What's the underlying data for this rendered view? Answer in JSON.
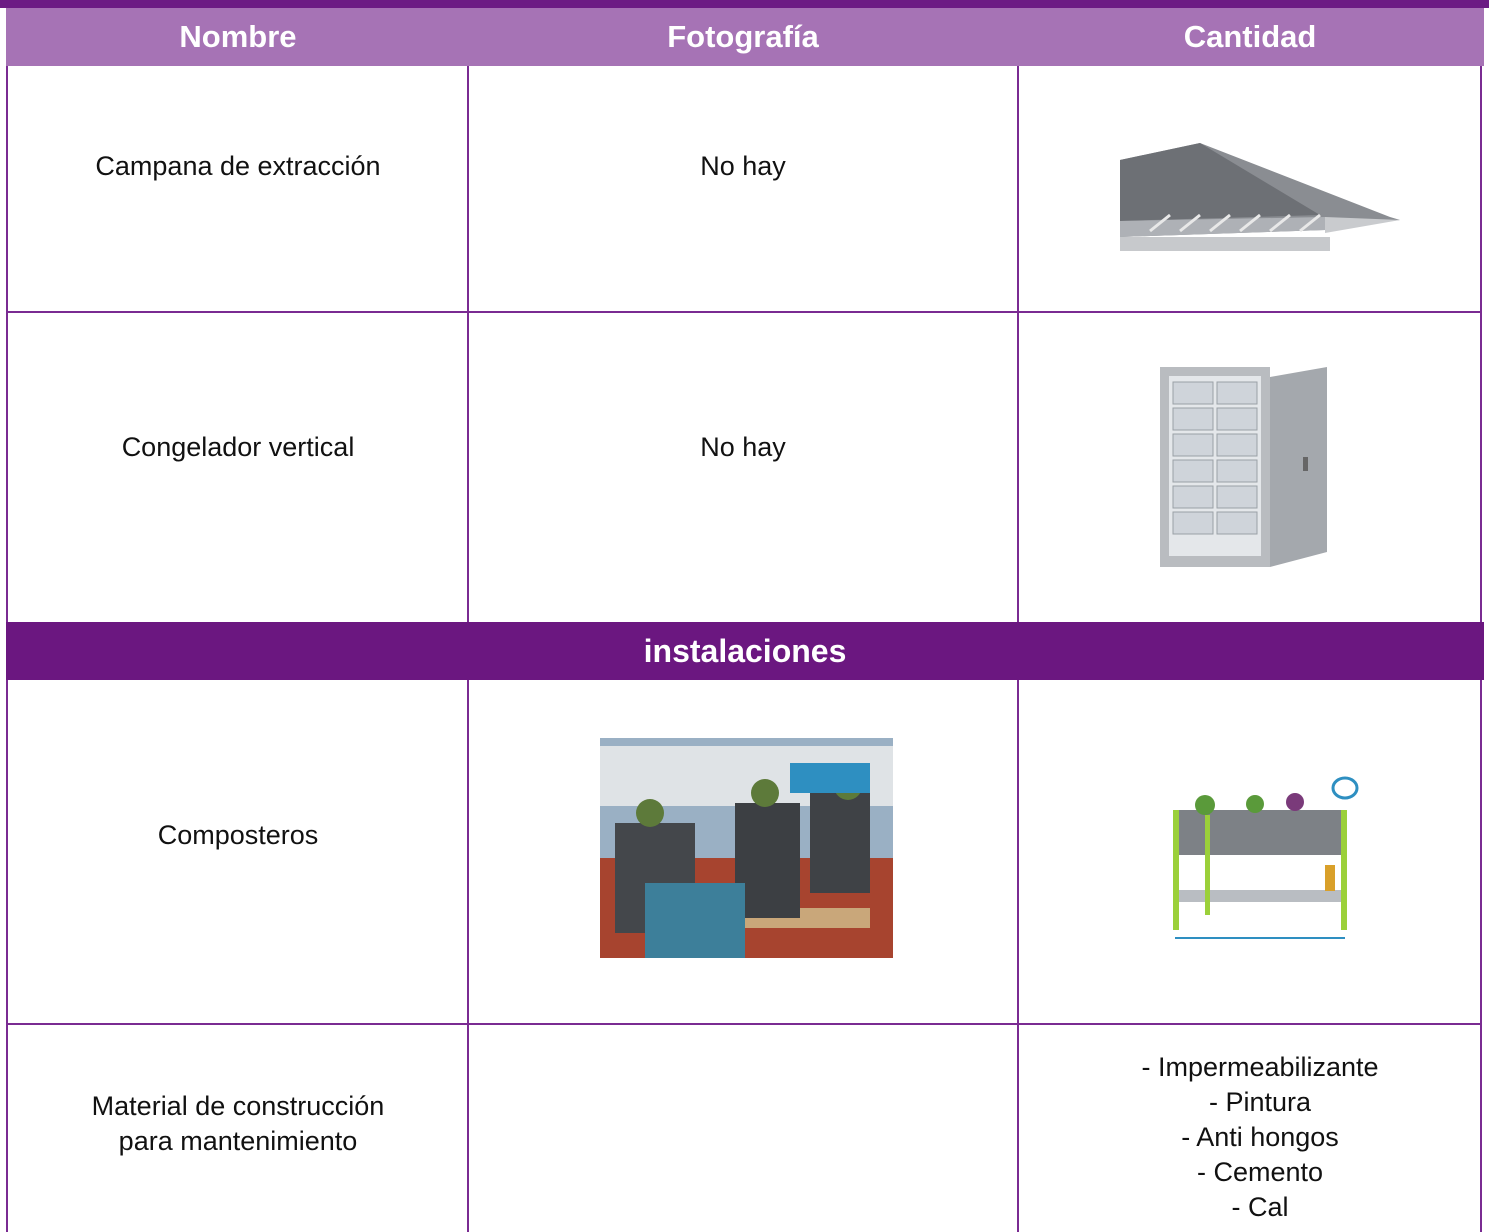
{
  "table": {
    "columns": [
      "Nombre",
      "Fotografía",
      "Cantidad"
    ],
    "rows": [
      {
        "name": "Campana de extracción",
        "photo": "No hay"
      },
      {
        "name": "Congelador vertical",
        "photo": "No hay"
      }
    ],
    "section": {
      "title": "instalaciones",
      "rows": [
        {
          "name": "Composteros"
        },
        {
          "name": "Material de construcción\npara mantenimiento",
          "quantity": [
            "- Impermeabilizante",
            "- Pintura",
            "- Anti hongos",
            "- Cemento",
            "- Cal"
          ]
        }
      ]
    }
  }
}
